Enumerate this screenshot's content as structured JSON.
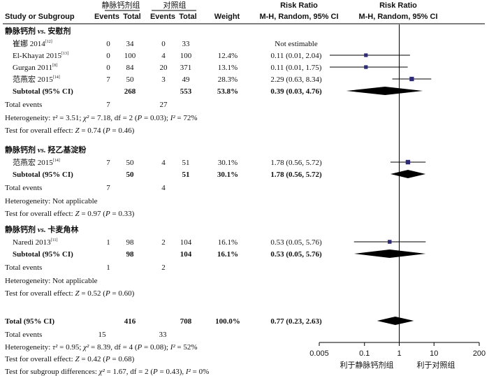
{
  "header": {
    "group1": "静脉钙剂组",
    "group2": "对照组",
    "rr_title": "Risk Ratio",
    "rr_title2": "Risk Ratio",
    "study_col": "Study or Subgroup",
    "events1": "Events",
    "total1": "Total",
    "events2": "Events",
    "total2": "Total",
    "weight": "Weight",
    "method": "M-H, Random, 95% CI",
    "method2": "M-H, Random, 95% CI"
  },
  "chart_data": {
    "type": "forest",
    "x_scale": "log",
    "xlim": [
      0.005,
      200
    ],
    "reference_line": 1,
    "ticks": [
      "0.005",
      "0.1",
      "1",
      "10",
      "200"
    ],
    "favours_left": "利于静脉钙剂组",
    "favours_right": "利于对照组",
    "subgroups": [
      {
        "title": "静脉钙剂 vs. 安慰剂",
        "studies": [
          {
            "name": "崔娜 2014",
            "ref": "[12]",
            "e1": "0",
            "n1": "34",
            "e2": "0",
            "n2": "33",
            "weight": "",
            "ci_text": "Not estimable",
            "rr": null,
            "lo": null,
            "hi": null,
            "w": 0
          },
          {
            "name": "El-Khayat 2015",
            "ref": "[13]",
            "e1": "0",
            "n1": "100",
            "e2": "4",
            "n2": "100",
            "weight": "12.4%",
            "ci_text": "0.11 (0.01, 2.04)",
            "rr": 0.11,
            "lo": 0.01,
            "hi": 2.04,
            "w": 12.4
          },
          {
            "name": "Gurgan 2011",
            "ref": "[8]",
            "e1": "0",
            "n1": "84",
            "e2": "20",
            "n2": "371",
            "weight": "13.1%",
            "ci_text": "0.11 (0.01, 1.75)",
            "rr": 0.11,
            "lo": 0.01,
            "hi": 1.75,
            "w": 13.1
          },
          {
            "name": "范燕宏 2015",
            "ref": "[14]",
            "e1": "7",
            "n1": "50",
            "e2": "3",
            "n2": "49",
            "weight": "28.3%",
            "ci_text": "2.29 (0.63, 8.34)",
            "rr": 2.29,
            "lo": 0.63,
            "hi": 8.34,
            "w": 28.3
          }
        ],
        "subtotal": {
          "label": "Subtotal (95% CI)",
          "n1": "268",
          "n2": "553",
          "weight": "53.8%",
          "ci_text": "0.39 (0.03, 4.76)",
          "rr": 0.39,
          "lo": 0.03,
          "hi": 4.76
        },
        "total_events": {
          "label": "Total events",
          "e1": "7",
          "e2": "27"
        },
        "heterogeneity": "Heterogeneity: τ² = 3.51; χ² = 7.18, df = 2 (P = 0.03); I² = 72%",
        "overall": "Test for overall effect: Z = 0.74 (P = 0.46)"
      },
      {
        "title": "静脉钙剂 vs. 羟乙基淀粉",
        "studies": [
          {
            "name": "范燕宏 2015",
            "ref": "[14]",
            "e1": "7",
            "n1": "50",
            "e2": "4",
            "n2": "51",
            "weight": "30.1%",
            "ci_text": "1.78 (0.56, 5.72)",
            "rr": 1.78,
            "lo": 0.56,
            "hi": 5.72,
            "w": 30.1
          }
        ],
        "subtotal": {
          "label": "Subtotal (95% CI)",
          "n1": "50",
          "n2": "51",
          "weight": "30.1%",
          "ci_text": "1.78 (0.56, 5.72)",
          "rr": 1.78,
          "lo": 0.56,
          "hi": 5.72
        },
        "total_events": {
          "label": "Total events",
          "e1": "7",
          "e2": "4"
        },
        "heterogeneity": "Heterogeneity: Not applicable",
        "overall": "Test for overall effect: Z = 0.97 (P = 0.33)"
      },
      {
        "title": "静脉钙剂 vs. 卡麦角林",
        "studies": [
          {
            "name": "Naredi 2013",
            "ref": "[11]",
            "e1": "1",
            "n1": "98",
            "e2": "2",
            "n2": "104",
            "weight": "16.1%",
            "ci_text": "0.53 (0.05, 5.76)",
            "rr": 0.53,
            "lo": 0.05,
            "hi": 5.76,
            "w": 16.1
          }
        ],
        "subtotal": {
          "label": "Subtotal (95% CI)",
          "n1": "98",
          "n2": "104",
          "weight": "16.1%",
          "ci_text": "0.53 (0.05, 5.76)",
          "rr": 0.53,
          "lo": 0.05,
          "hi": 5.76
        },
        "total_events": {
          "label": "Total events",
          "e1": "1",
          "e2": "2"
        },
        "heterogeneity": "Heterogeneity: Not applicable",
        "overall": "Test for overall effect: Z = 0.52 (P = 0.60)"
      }
    ],
    "total": {
      "label": "Total (95% CI)",
      "n1": "416",
      "n2": "708",
      "weight": "100.0%",
      "ci_text": "0.77 (0.23, 2.63)",
      "rr": 0.77,
      "lo": 0.23,
      "hi": 2.63
    },
    "total_events": {
      "label": "Total events",
      "e1": "15",
      "e2": "33"
    },
    "heterogeneity": "Heterogeneity: τ² = 0.95; χ² = 8.39, df = 4 (P = 0.08); I² = 52%",
    "overall": "Test for overall effect: Z = 0.42 (P = 0.68)",
    "subgroup_diff": "Test for subgroup differences: χ² = 1.67, df = 2 (P = 0.43), I² = 0%",
    "colors": {
      "square": "#2e2a7a",
      "diamond": "#000000",
      "line": "#000000"
    }
  }
}
